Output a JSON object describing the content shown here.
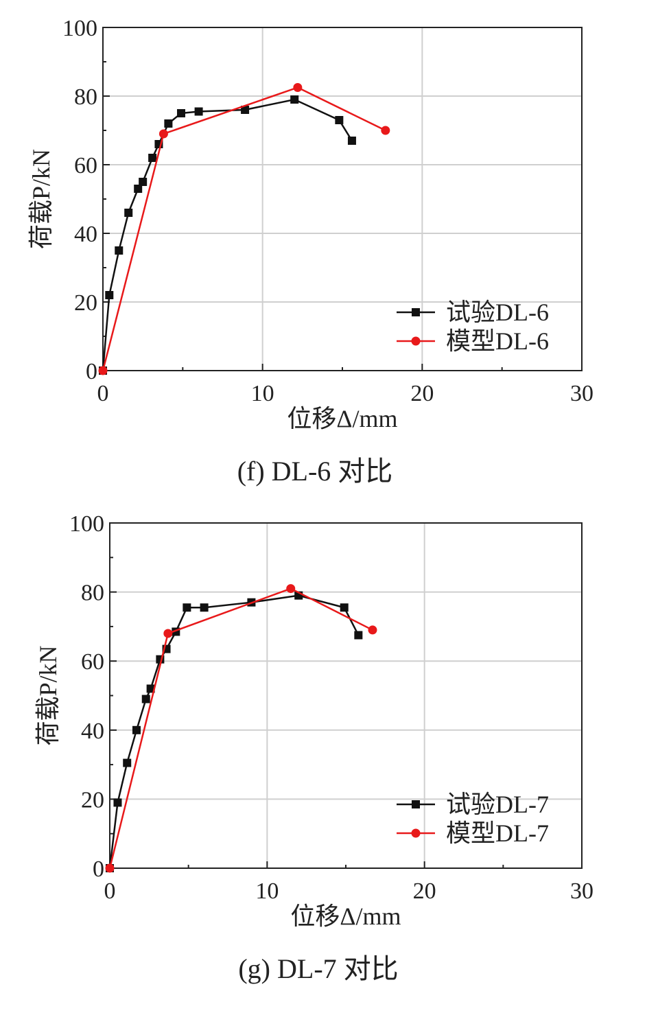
{
  "chart_data": [
    {
      "type": "line",
      "caption": "(f) DL-6 对比",
      "xlabel": "位移Δ/mm",
      "ylabel": "荷载P/kN",
      "xlim": [
        0,
        30
      ],
      "ylim": [
        0,
        100
      ],
      "xticks": [
        0,
        10,
        20,
        30
      ],
      "yticks": [
        0,
        20,
        40,
        60,
        80,
        100
      ],
      "grid": true,
      "legend_position": "bottom-right",
      "series": [
        {
          "name": "试验DL-6",
          "color": "#111111",
          "marker": "square",
          "x": [
            0,
            0.4,
            1.0,
            1.6,
            2.2,
            2.5,
            3.1,
            3.5,
            4.1,
            4.9,
            6.0,
            8.9,
            12.0,
            14.8,
            15.6
          ],
          "y": [
            0,
            22,
            35,
            46,
            53,
            55,
            62,
            66,
            72,
            75,
            75.5,
            76,
            79,
            73,
            67
          ]
        },
        {
          "name": "模型DL-6",
          "color": "#e8191a",
          "marker": "circle",
          "x": [
            0,
            3.8,
            12.2,
            17.7
          ],
          "y": [
            0,
            69,
            82.5,
            70
          ]
        }
      ]
    },
    {
      "type": "line",
      "caption": "(g) DL-7 对比",
      "xlabel": "位移Δ/mm",
      "ylabel": "荷载P/kN",
      "xlim": [
        0,
        30
      ],
      "ylim": [
        0,
        100
      ],
      "xticks": [
        0,
        10,
        20,
        30
      ],
      "yticks": [
        0,
        20,
        40,
        60,
        80,
        100
      ],
      "grid": true,
      "legend_position": "bottom-right",
      "series": [
        {
          "name": "试验DL-7",
          "color": "#111111",
          "marker": "square",
          "x": [
            0,
            0.5,
            1.1,
            1.7,
            2.3,
            2.6,
            3.2,
            3.6,
            4.2,
            4.9,
            6.0,
            9.0,
            12.0,
            14.9,
            15.8
          ],
          "y": [
            0,
            19,
            30.5,
            40,
            49,
            52,
            60.5,
            63.5,
            68.5,
            75.5,
            75.5,
            77,
            79,
            75.5,
            67.5
          ]
        },
        {
          "name": "模型DL-7",
          "color": "#e8191a",
          "marker": "circle",
          "x": [
            0,
            3.7,
            11.5,
            16.7
          ],
          "y": [
            0,
            68,
            81,
            69
          ]
        }
      ]
    }
  ]
}
